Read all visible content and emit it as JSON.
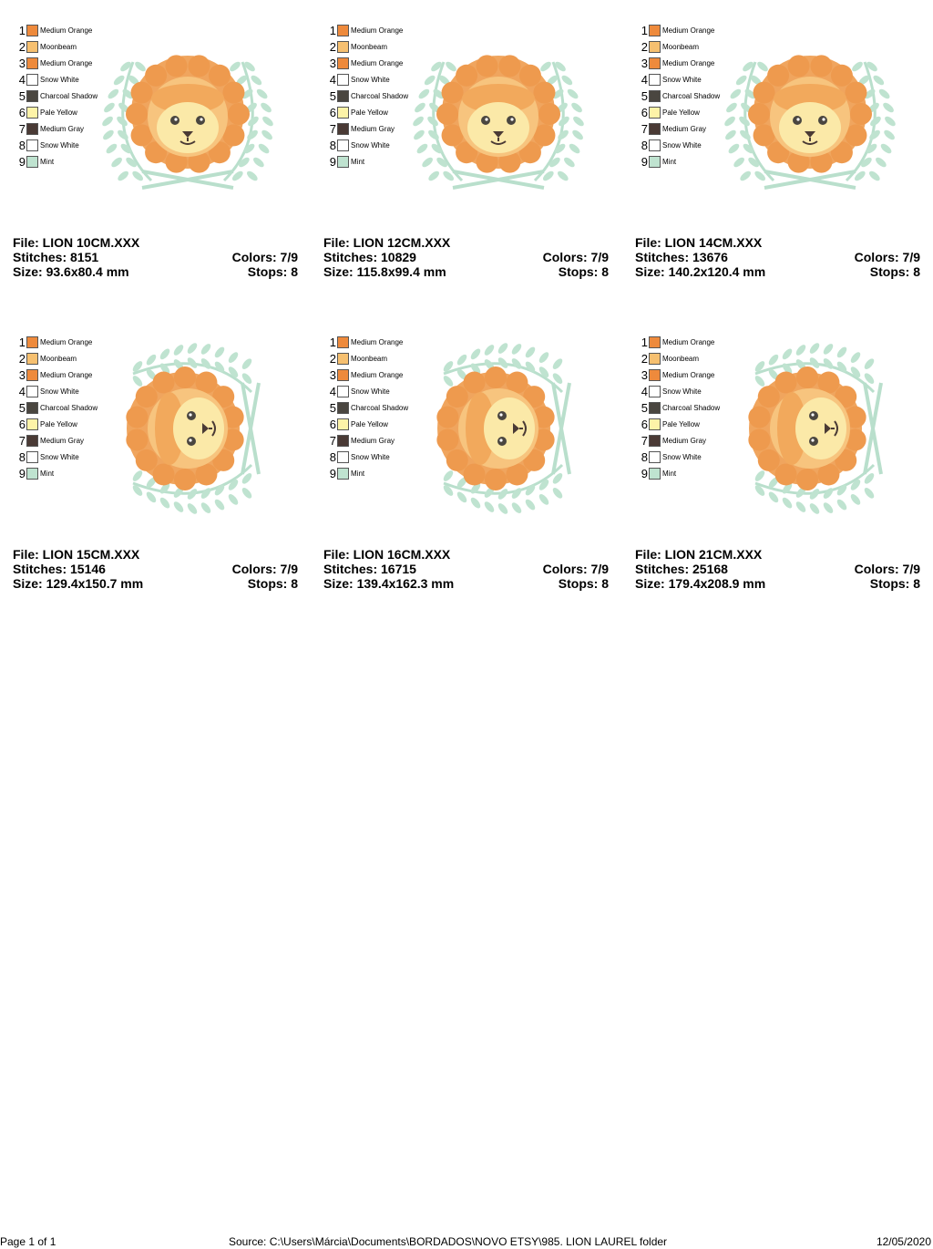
{
  "palette": [
    {
      "number": "1",
      "name": "Medium Orange",
      "color": "#ee8a3c"
    },
    {
      "number": "2",
      "name": "Moonbeam",
      "color": "#f6c070"
    },
    {
      "number": "3",
      "name": "Medium Orange",
      "color": "#ee8a3c"
    },
    {
      "number": "4",
      "name": "Snow White",
      "color": "#ffffff"
    },
    {
      "number": "5",
      "name": "Charcoal Shadow",
      "color": "#4a4640"
    },
    {
      "number": "6",
      "name": "Pale Yellow",
      "color": "#fdf3a8"
    },
    {
      "number": "7",
      "name": "Medium Gray",
      "color": "#4a3a35"
    },
    {
      "number": "8",
      "name": "Snow White",
      "color": "#ffffff"
    },
    {
      "number": "9",
      "name": "Mint",
      "color": "#bfe3d0"
    }
  ],
  "designs": [
    {
      "file": "File: LION 10CM.XXX",
      "stitches": "Stitches: 8151",
      "size": "Size: 93.6x80.4 mm",
      "colors": "Colors: 7/9",
      "stops": "Stops: 8",
      "rotated": false
    },
    {
      "file": "File: LION 12CM.XXX",
      "stitches": "Stitches: 10829",
      "size": "Size: 115.8x99.4 mm",
      "colors": "Colors: 7/9",
      "stops": "Stops: 8",
      "rotated": false
    },
    {
      "file": "File: LION 14CM.XXX",
      "stitches": "Stitches: 13676",
      "size": "Size: 140.2x120.4 mm",
      "colors": "Colors: 7/9",
      "stops": "Stops: 8",
      "rotated": false
    },
    {
      "file": "File: LION 15CM.XXX",
      "stitches": "Stitches: 15146",
      "size": "Size: 129.4x150.7 mm",
      "colors": "Colors: 7/9",
      "stops": "Stops: 8",
      "rotated": true
    },
    {
      "file": "File: LION 16CM.XXX",
      "stitches": "Stitches: 16715",
      "size": "Size: 139.4x162.3 mm",
      "colors": "Colors: 7/9",
      "stops": "Stops: 8",
      "rotated": true
    },
    {
      "file": "File: LION 21CM.XXX",
      "stitches": "Stitches: 25168",
      "size": "Size: 179.4x208.9 mm",
      "colors": "Colors: 7/9",
      "stops": "Stops: 8",
      "rotated": true
    }
  ],
  "footer": {
    "page": "Page 1 of 1",
    "source": "Source: C:\\Users\\Márcia\\Documents\\BORDADOS\\NOVO ETSY\\985. LION LAUREL folder",
    "date": "12/05/2020"
  }
}
